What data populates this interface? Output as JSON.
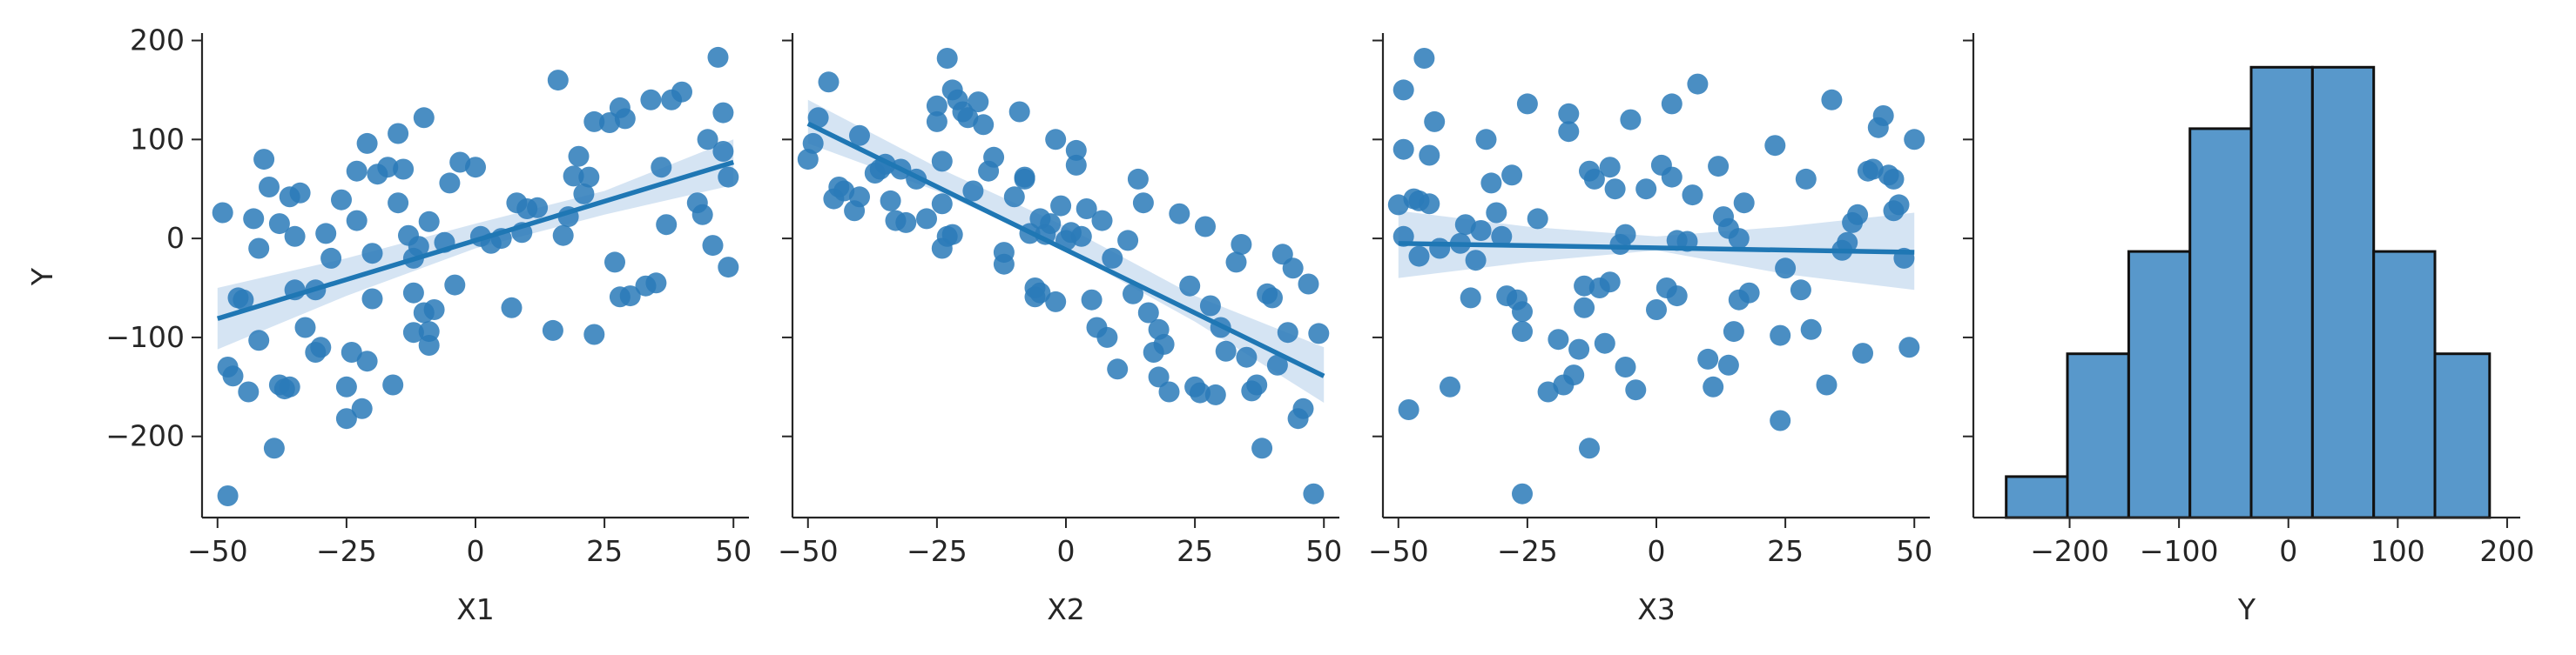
{
  "colors": {
    "points": "#2a7ab9",
    "line": "#1f77b4",
    "band": "#c7dbef",
    "hist_fill": "#5898cb",
    "hist_edge": "#111111",
    "axis": "#262626"
  },
  "chart_data": [
    {
      "type": "scatter",
      "panel": 1,
      "xlabel": "X1",
      "ylabel": "Y",
      "xlim": [
        -53,
        53
      ],
      "ylim": [
        -282,
        204
      ],
      "xticks": [
        -50,
        -25,
        0,
        25,
        50
      ],
      "xtick_labels": [
        "−50",
        "−25",
        "0",
        "25",
        "50"
      ],
      "yticks": [
        -200,
        -100,
        0,
        100,
        200
      ],
      "ytick_labels": [
        "−200",
        "−100",
        "0",
        "100",
        "200"
      ],
      "regression": {
        "x": [
          -50,
          50
        ],
        "y": [
          -81,
          77
        ]
      },
      "band": {
        "x": [
          -50,
          -25,
          0,
          25,
          50
        ],
        "upper": [
          -50,
          -20,
          15,
          48,
          100
        ],
        "lower": [
          -112,
          -58,
          -10,
          24,
          54
        ]
      },
      "points": [
        [
          -49,
          26
        ],
        [
          -48,
          -130
        ],
        [
          -48,
          -260
        ],
        [
          -47,
          -139
        ],
        [
          -46,
          -60
        ],
        [
          -45,
          -62
        ],
        [
          -44,
          -155
        ],
        [
          -43,
          20
        ],
        [
          -42,
          -10
        ],
        [
          -42,
          -103
        ],
        [
          -41,
          80
        ],
        [
          -40,
          52
        ],
        [
          -39,
          -212
        ],
        [
          -38,
          15
        ],
        [
          -38,
          -148
        ],
        [
          -37,
          -152
        ],
        [
          -36,
          -150
        ],
        [
          -36,
          42
        ],
        [
          -35,
          -52
        ],
        [
          -35,
          2
        ],
        [
          -34,
          46
        ],
        [
          -33,
          -90
        ],
        [
          -31,
          -115
        ],
        [
          -31,
          -52
        ],
        [
          -30,
          -110
        ],
        [
          -29,
          5
        ],
        [
          -28,
          -20
        ],
        [
          -26,
          39
        ],
        [
          -25,
          -150
        ],
        [
          -25,
          -182
        ],
        [
          -24,
          -115
        ],
        [
          -23,
          18
        ],
        [
          -23,
          68
        ],
        [
          -22,
          -172
        ],
        [
          -21,
          -124
        ],
        [
          -21,
          96
        ],
        [
          -20,
          -61
        ],
        [
          -20,
          -15
        ],
        [
          -19,
          65
        ],
        [
          -17,
          72
        ],
        [
          -16,
          -148
        ],
        [
          -15,
          36
        ],
        [
          -15,
          106
        ],
        [
          -14,
          70
        ],
        [
          -13,
          3
        ],
        [
          -12,
          -20
        ],
        [
          -12,
          -55
        ],
        [
          -12,
          -95
        ],
        [
          -11,
          -8
        ],
        [
          -10,
          -75
        ],
        [
          -10,
          122
        ],
        [
          -9,
          -94
        ],
        [
          -9,
          -108
        ],
        [
          -9,
          17
        ],
        [
          -8,
          -72
        ],
        [
          -6,
          -4
        ],
        [
          -5,
          56
        ],
        [
          -4,
          -47
        ],
        [
          -3,
          77
        ],
        [
          0,
          72
        ],
        [
          1,
          2
        ],
        [
          3,
          -5
        ],
        [
          5,
          0
        ],
        [
          7,
          -70
        ],
        [
          8,
          36
        ],
        [
          9,
          6
        ],
        [
          10,
          30
        ],
        [
          12,
          31
        ],
        [
          15,
          -93
        ],
        [
          16,
          160
        ],
        [
          17,
          3
        ],
        [
          18,
          22
        ],
        [
          19,
          63
        ],
        [
          20,
          83
        ],
        [
          21,
          45
        ],
        [
          22,
          62
        ],
        [
          23,
          -97
        ],
        [
          23,
          118
        ],
        [
          26,
          117
        ],
        [
          27,
          -24
        ],
        [
          28,
          -59
        ],
        [
          28,
          132
        ],
        [
          29,
          121
        ],
        [
          30,
          -58
        ],
        [
          33,
          -48
        ],
        [
          34,
          140
        ],
        [
          35,
          -45
        ],
        [
          36,
          72
        ],
        [
          37,
          14
        ],
        [
          38,
          140
        ],
        [
          40,
          148
        ],
        [
          43,
          36
        ],
        [
          44,
          24
        ],
        [
          45,
          100
        ],
        [
          46,
          -7
        ],
        [
          47,
          183
        ],
        [
          48,
          127
        ],
        [
          48,
          88
        ],
        [
          49,
          -29
        ],
        [
          49,
          62
        ]
      ]
    },
    {
      "type": "scatter",
      "panel": 2,
      "xlabel": "X2",
      "ylabel": "",
      "xlim": [
        -53,
        53
      ],
      "ylim": [
        -282,
        204
      ],
      "xticks": [
        -50,
        -25,
        0,
        25,
        50
      ],
      "xtick_labels": [
        "−50",
        "−25",
        "0",
        "25",
        "50"
      ],
      "regression": {
        "x": [
          -50,
          50
        ],
        "y": [
          116,
          -139
        ]
      },
      "band": {
        "x": [
          -50,
          -25,
          0,
          25,
          50
        ],
        "upper": [
          140,
          72,
          12,
          -58,
          -110
        ],
        "lower": [
          96,
          48,
          -12,
          -84,
          -166
        ]
      },
      "points": [
        [
          -50,
          80
        ],
        [
          -49,
          96
        ],
        [
          -48,
          122
        ],
        [
          -46,
          158
        ],
        [
          -45,
          40
        ],
        [
          -44,
          52
        ],
        [
          -43,
          48
        ],
        [
          -41,
          28
        ],
        [
          -40,
          104
        ],
        [
          -40,
          42
        ],
        [
          -37,
          66
        ],
        [
          -36,
          70
        ],
        [
          -35,
          75
        ],
        [
          -34,
          38
        ],
        [
          -33,
          18
        ],
        [
          -32,
          70
        ],
        [
          -31,
          16
        ],
        [
          -29,
          60
        ],
        [
          -27,
          20
        ],
        [
          -25,
          134
        ],
        [
          -25,
          118
        ],
        [
          -24,
          78
        ],
        [
          -24,
          35
        ],
        [
          -24,
          -10
        ],
        [
          -23,
          182
        ],
        [
          -23,
          2
        ],
        [
          -22,
          150
        ],
        [
          -22,
          4
        ],
        [
          -21,
          140
        ],
        [
          -20,
          128
        ],
        [
          -19,
          122
        ],
        [
          -18,
          48
        ],
        [
          -17,
          138
        ],
        [
          -16,
          115
        ],
        [
          -15,
          68
        ],
        [
          -14,
          82
        ],
        [
          -12,
          -14
        ],
        [
          -12,
          -26
        ],
        [
          -10,
          42
        ],
        [
          -9,
          128
        ],
        [
          -8,
          60
        ],
        [
          -8,
          62
        ],
        [
          -7,
          5
        ],
        [
          -6,
          -50
        ],
        [
          -6,
          -59
        ],
        [
          -5,
          -55
        ],
        [
          -5,
          20
        ],
        [
          -4,
          4
        ],
        [
          -3,
          15
        ],
        [
          -2,
          -64
        ],
        [
          -2,
          100
        ],
        [
          -1,
          33
        ],
        [
          0,
          -2
        ],
        [
          1,
          6
        ],
        [
          2,
          89
        ],
        [
          2,
          74
        ],
        [
          3,
          2
        ],
        [
          4,
          30
        ],
        [
          5,
          -62
        ],
        [
          6,
          -90
        ],
        [
          7,
          18
        ],
        [
          8,
          -100
        ],
        [
          9,
          -20
        ],
        [
          10,
          -132
        ],
        [
          12,
          -2
        ],
        [
          13,
          -56
        ],
        [
          14,
          60
        ],
        [
          15,
          36
        ],
        [
          16,
          -75
        ],
        [
          17,
          -115
        ],
        [
          18,
          -92
        ],
        [
          18,
          -140
        ],
        [
          19,
          -107
        ],
        [
          20,
          -155
        ],
        [
          22,
          25
        ],
        [
          24,
          -48
        ],
        [
          25,
          -150
        ],
        [
          26,
          -156
        ],
        [
          27,
          12
        ],
        [
          28,
          -68
        ],
        [
          29,
          -158
        ],
        [
          30,
          -90
        ],
        [
          31,
          -114
        ],
        [
          33,
          -24
        ],
        [
          34,
          -6
        ],
        [
          35,
          -120
        ],
        [
          36,
          -154
        ],
        [
          37,
          -148
        ],
        [
          38,
          -212
        ],
        [
          39,
          -56
        ],
        [
          40,
          -60
        ],
        [
          41,
          -128
        ],
        [
          42,
          -16
        ],
        [
          43,
          -95
        ],
        [
          44,
          -30
        ],
        [
          45,
          -182
        ],
        [
          46,
          -172
        ],
        [
          47,
          -46
        ],
        [
          48,
          -258
        ],
        [
          49,
          -96
        ]
      ]
    },
    {
      "type": "scatter",
      "panel": 3,
      "xlabel": "X3",
      "ylabel": "",
      "xlim": [
        -53,
        53
      ],
      "ylim": [
        -282,
        204
      ],
      "xticks": [
        -50,
        -25,
        0,
        25,
        50
      ],
      "xtick_labels": [
        "−50",
        "−25",
        "0",
        "25",
        "50"
      ],
      "regression": {
        "x": [
          -50,
          50
        ],
        "y": [
          -5,
          -14
        ]
      },
      "band": {
        "x": [
          -50,
          -25,
          0,
          25,
          50
        ],
        "upper": [
          28,
          12,
          2,
          12,
          26
        ],
        "lower": [
          -40,
          -24,
          -12,
          -36,
          -52
        ]
      },
      "points": [
        [
          -50,
          34
        ],
        [
          -49,
          150
        ],
        [
          -49,
          90
        ],
        [
          -49,
          2
        ],
        [
          -48,
          -173
        ],
        [
          -47,
          40
        ],
        [
          -46,
          38
        ],
        [
          -46,
          -18
        ],
        [
          -45,
          182
        ],
        [
          -44,
          35
        ],
        [
          -44,
          84
        ],
        [
          -43,
          118
        ],
        [
          -42,
          -10
        ],
        [
          -40,
          -150
        ],
        [
          -38,
          -5
        ],
        [
          -37,
          14
        ],
        [
          -36,
          -60
        ],
        [
          -35,
          -22
        ],
        [
          -34,
          8
        ],
        [
          -33,
          100
        ],
        [
          -32,
          56
        ],
        [
          -31,
          26
        ],
        [
          -30,
          2
        ],
        [
          -29,
          -58
        ],
        [
          -28,
          64
        ],
        [
          -27,
          -62
        ],
        [
          -26,
          -258
        ],
        [
          -26,
          -74
        ],
        [
          -26,
          -94
        ],
        [
          -25,
          136
        ],
        [
          -23,
          20
        ],
        [
          -21,
          -155
        ],
        [
          -19,
          -102
        ],
        [
          -18,
          -148
        ],
        [
          -17,
          108
        ],
        [
          -17,
          126
        ],
        [
          -16,
          -138
        ],
        [
          -15,
          -112
        ],
        [
          -14,
          -48
        ],
        [
          -14,
          -70
        ],
        [
          -13,
          -212
        ],
        [
          -13,
          68
        ],
        [
          -12,
          60
        ],
        [
          -11,
          -50
        ],
        [
          -10,
          -106
        ],
        [
          -9,
          72
        ],
        [
          -9,
          -44
        ],
        [
          -8,
          50
        ],
        [
          -7,
          -6
        ],
        [
          -6,
          4
        ],
        [
          -6,
          -130
        ],
        [
          -5,
          120
        ],
        [
          -4,
          -153
        ],
        [
          -2,
          50
        ],
        [
          0,
          -72
        ],
        [
          1,
          74
        ],
        [
          2,
          -50
        ],
        [
          3,
          136
        ],
        [
          3,
          62
        ],
        [
          4,
          -2
        ],
        [
          4,
          -58
        ],
        [
          6,
          -3
        ],
        [
          7,
          44
        ],
        [
          8,
          156
        ],
        [
          10,
          -122
        ],
        [
          11,
          -150
        ],
        [
          12,
          73
        ],
        [
          13,
          22
        ],
        [
          14,
          -128
        ],
        [
          14,
          10
        ],
        [
          15,
          -94
        ],
        [
          16,
          -62
        ],
        [
          16,
          0
        ],
        [
          17,
          36
        ],
        [
          18,
          -55
        ],
        [
          23,
          94
        ],
        [
          24,
          -98
        ],
        [
          24,
          -184
        ],
        [
          25,
          -30
        ],
        [
          28,
          -52
        ],
        [
          29,
          60
        ],
        [
          30,
          -92
        ],
        [
          33,
          -148
        ],
        [
          34,
          140
        ],
        [
          36,
          -12
        ],
        [
          37,
          -4
        ],
        [
          38,
          16
        ],
        [
          39,
          24
        ],
        [
          40,
          -116
        ],
        [
          41,
          68
        ],
        [
          42,
          70
        ],
        [
          43,
          112
        ],
        [
          44,
          124
        ],
        [
          45,
          64
        ],
        [
          46,
          28
        ],
        [
          46,
          60
        ],
        [
          47,
          34
        ],
        [
          48,
          -20
        ],
        [
          49,
          -110
        ],
        [
          50,
          100
        ]
      ]
    },
    {
      "type": "bar",
      "panel": 4,
      "subtype": "histogram",
      "xlabel": "Y",
      "ylabel": "",
      "xlim": [
        -288,
        212
      ],
      "xticks": [
        -200,
        -100,
        0,
        100,
        200
      ],
      "xtick_labels": [
        "−200",
        "−100",
        "0",
        "100",
        "200"
      ],
      "bin_edges": [
        -258,
        -202,
        -146,
        -90,
        -34,
        22,
        78,
        134,
        184
      ],
      "counts": [
        2,
        8,
        13,
        19,
        22,
        22,
        13,
        8
      ],
      "ylim": [
        0,
        23.5
      ]
    }
  ]
}
